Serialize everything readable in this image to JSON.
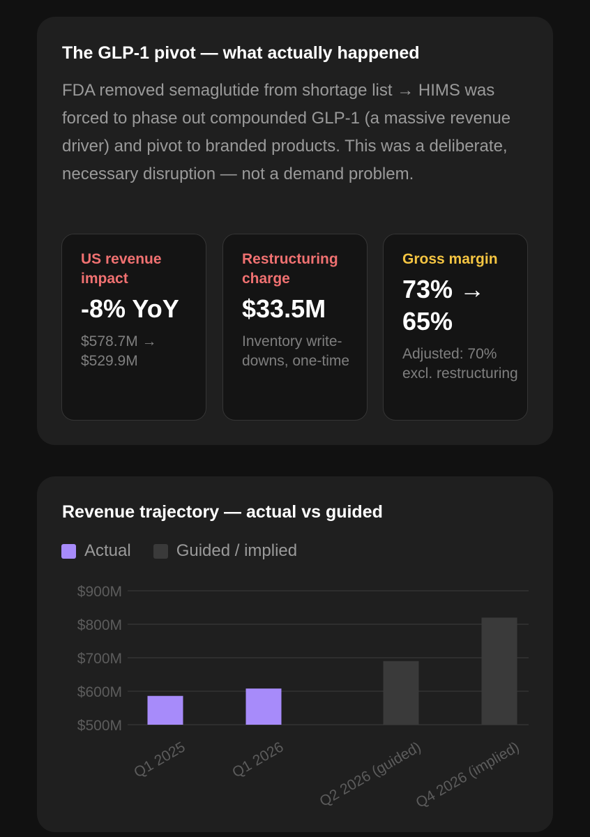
{
  "glp1": {
    "title": "The GLP-1 pivot — what actually happened",
    "description": "FDA removed semaglutide from shortage list → HIMS was forced to phase out compounded GLP-1 (a massive revenue driver) and pivot to branded products. This was a deliberate, necessary disruption — not a demand problem.",
    "stats": [
      {
        "label": "US revenue impact",
        "value": "-8% YoY",
        "note": "$578.7M → $529.9M",
        "color": "#f07171"
      },
      {
        "label": "Restructuring charge",
        "value": "$33.5M",
        "note": "Inventory write-downs, one-time",
        "color": "#f07171"
      },
      {
        "label": "Gross margin",
        "value": "73% → 65%",
        "note": "Adjusted: 70% excl. restructuring",
        "color": "#f5c542"
      }
    ]
  },
  "revenue": {
    "title": "Revenue trajectory — actual vs guided",
    "legend": [
      {
        "label": "Actual",
        "color": "#a78bfa"
      },
      {
        "label": "Guided / implied",
        "color": "#3a3a3a"
      }
    ]
  },
  "chart_data": {
    "type": "bar",
    "title": "Revenue trajectory — actual vs guided",
    "categories": [
      "Q1 2025",
      "Q1 2026",
      "Q2 2026 (guided)",
      "Q4 2026 (implied)"
    ],
    "values": [
      586,
      608,
      690,
      820
    ],
    "kinds": [
      "Actual",
      "Actual",
      "Guided / implied",
      "Guided / implied"
    ],
    "colors": [
      "#a78bfa",
      "#a78bfa",
      "#3a3a3a",
      "#3a3a3a"
    ],
    "ylim": [
      500,
      900
    ],
    "yticks": [
      500,
      600,
      700,
      800,
      900
    ],
    "ytick_labels": [
      "$500M",
      "$600M",
      "$700M",
      "$800M",
      "$900M"
    ],
    "grid": true,
    "legend_position": "top-left"
  }
}
